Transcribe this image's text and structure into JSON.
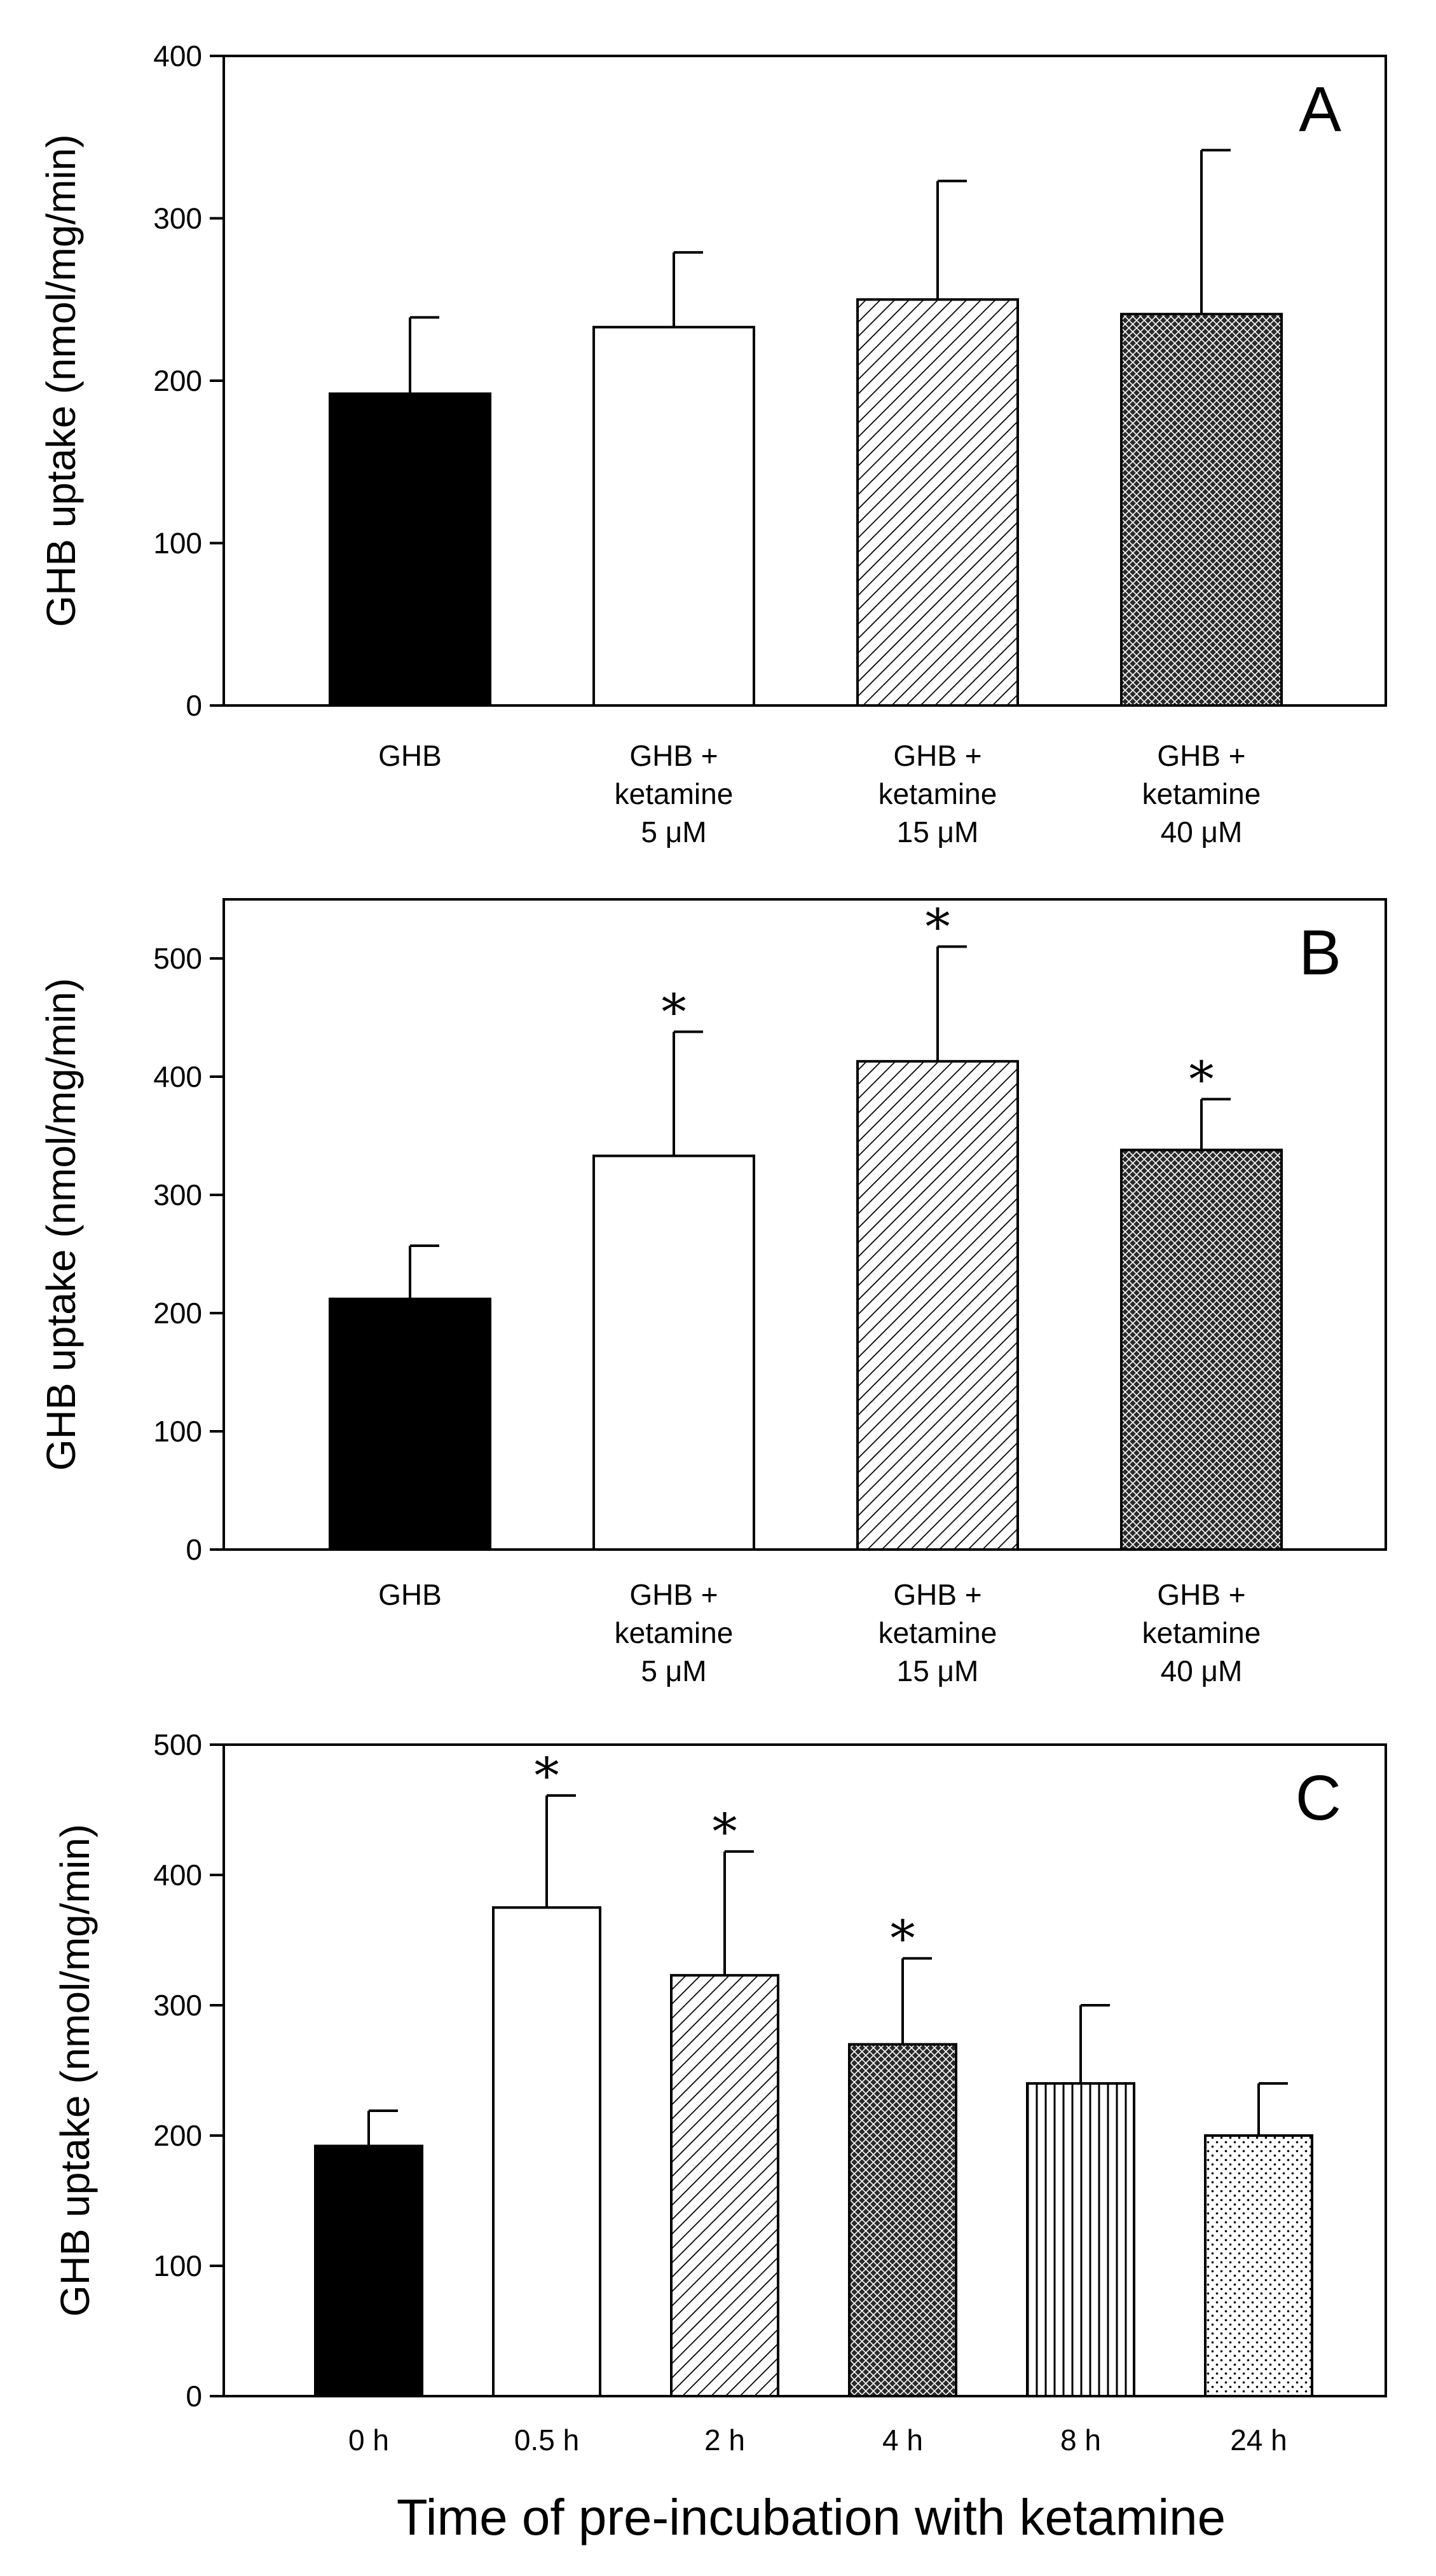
{
  "chart_data": [
    {
      "type": "bar",
      "panel": "A",
      "ylabel": "GHB uptake (nmol/mg/min)",
      "xlabel": "",
      "ylim": [
        0,
        400
      ],
      "yticks": [
        0,
        100,
        200,
        300,
        400
      ],
      "categories": [
        [
          "GHB"
        ],
        [
          "GHB +",
          "ketamine",
          "5 μM"
        ],
        [
          "GHB +",
          "ketamine",
          "15 μM"
        ],
        [
          "GHB +",
          "ketamine",
          "40 μM"
        ]
      ],
      "values": [
        192,
        233,
        250,
        241
      ],
      "errors": [
        47,
        46,
        73,
        101
      ],
      "patterns": [
        "solid",
        "empty",
        "diag",
        "cross"
      ],
      "significance": [
        "",
        "",
        "",
        ""
      ]
    },
    {
      "type": "bar",
      "panel": "B",
      "ylabel": "GHB uptake (nmol/mg/min)",
      "xlabel": "",
      "ylim": [
        0,
        550
      ],
      "yticks": [
        0,
        100,
        200,
        300,
        400,
        500
      ],
      "categories": [
        [
          "GHB"
        ],
        [
          "GHB +",
          "ketamine",
          "5 μM"
        ],
        [
          "GHB +",
          "ketamine",
          "15 μM"
        ],
        [
          "GHB +",
          "ketamine",
          "40 μM"
        ]
      ],
      "values": [
        212,
        333,
        413,
        338
      ],
      "errors": [
        45,
        105,
        97,
        43
      ],
      "patterns": [
        "solid",
        "empty",
        "diag",
        "cross"
      ],
      "significance": [
        "",
        "*",
        "*",
        "*"
      ]
    },
    {
      "type": "bar",
      "panel": "C",
      "ylabel": "GHB uptake (nmol/mg/min)",
      "xlabel": "Time of pre-incubation with ketamine",
      "ylim": [
        0,
        500
      ],
      "yticks": [
        0,
        100,
        200,
        300,
        400,
        500
      ],
      "categories": [
        [
          "0 h"
        ],
        [
          "0.5 h"
        ],
        [
          "2 h"
        ],
        [
          "4 h"
        ],
        [
          "8 h"
        ],
        [
          "24 h"
        ]
      ],
      "values": [
        192,
        375,
        323,
        270,
        240,
        200
      ],
      "errors": [
        27,
        86,
        95,
        66,
        60,
        40
      ],
      "patterns": [
        "solid",
        "empty",
        "diag",
        "cross",
        "vert",
        "dots"
      ],
      "significance": [
        "",
        "*",
        "*",
        "*",
        "",
        ""
      ]
    }
  ]
}
